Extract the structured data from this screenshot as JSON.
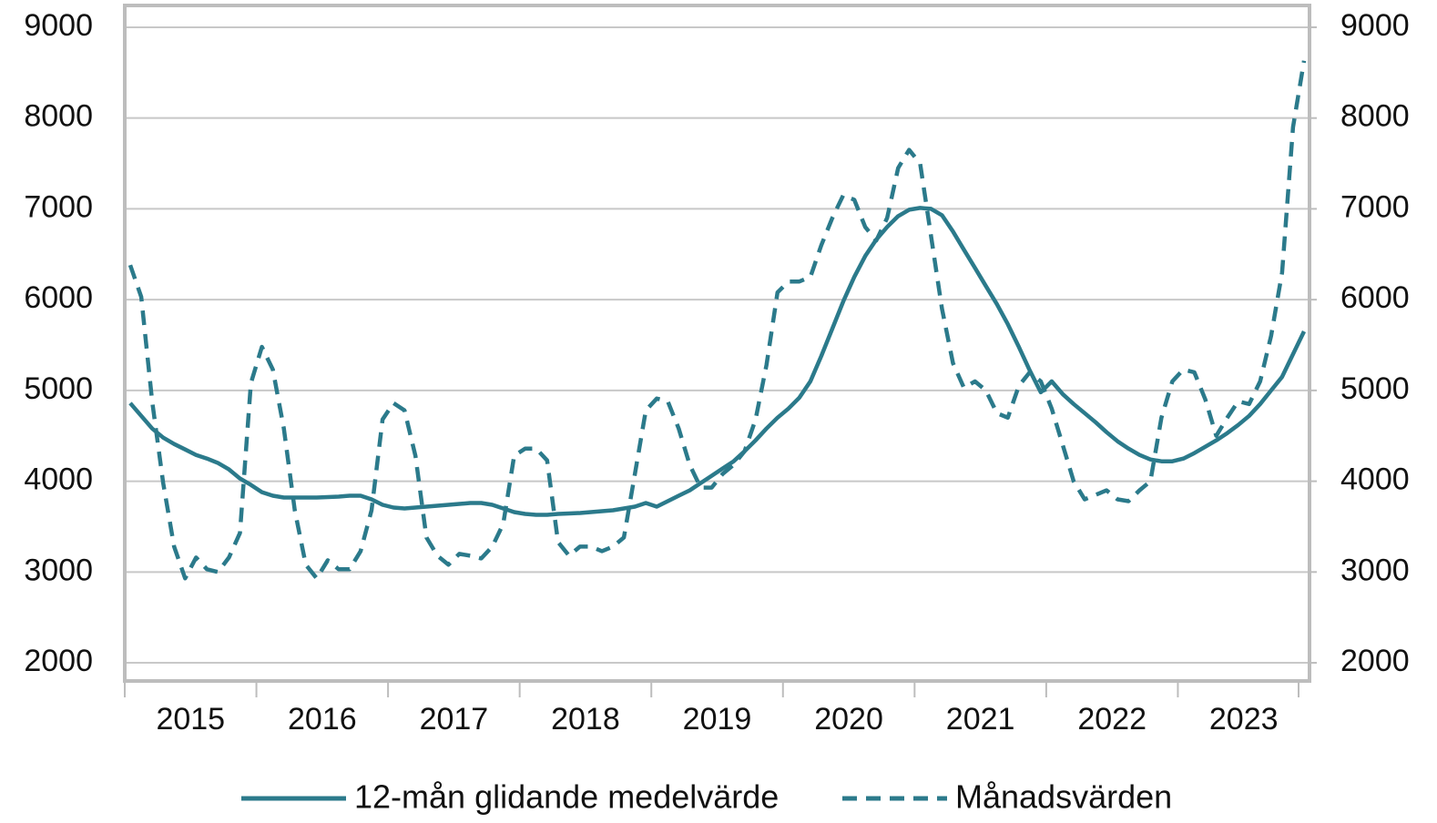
{
  "chart_data": {
    "type": "line",
    "categories": [
      "2015",
      null,
      null,
      null,
      null,
      null,
      null,
      null,
      null,
      null,
      null,
      null,
      "2016",
      null,
      null,
      null,
      null,
      null,
      null,
      null,
      null,
      null,
      null,
      null,
      "2017",
      null,
      null,
      null,
      null,
      null,
      null,
      null,
      null,
      null,
      null,
      null,
      "2018",
      null,
      null,
      null,
      null,
      null,
      null,
      null,
      null,
      null,
      null,
      null,
      "2019",
      null,
      null,
      null,
      null,
      null,
      null,
      null,
      null,
      null,
      null,
      null,
      "2020",
      null,
      null,
      null,
      null,
      null,
      null,
      null,
      null,
      null,
      null,
      null,
      "2021",
      null,
      null,
      null,
      null,
      null,
      null,
      null,
      null,
      null,
      null,
      null,
      "2022",
      null,
      null,
      null,
      null,
      null,
      null,
      null,
      null,
      null,
      null,
      null,
      "2023",
      null,
      null,
      null,
      null,
      null,
      null,
      null,
      null,
      null,
      null,
      null
    ],
    "series": [
      {
        "name": "12-mån glidande medelvärde",
        "color": "#2b7a8b",
        "style": "solid",
        "values": [
          4860,
          4720,
          4580,
          4480,
          4410,
          4350,
          4290,
          4250,
          4200,
          4130,
          4030,
          3960,
          3880,
          3840,
          3820,
          3820,
          3820,
          3820,
          3825,
          3830,
          3840,
          3840,
          3800,
          3740,
          3710,
          3700,
          3710,
          3720,
          3730,
          3740,
          3750,
          3760,
          3760,
          3740,
          3700,
          3660,
          3640,
          3630,
          3630,
          3640,
          3645,
          3650,
          3660,
          3670,
          3680,
          3700,
          3720,
          3760,
          3720,
          3780,
          3840,
          3900,
          3980,
          4060,
          4140,
          4220,
          4330,
          4450,
          4580,
          4700,
          4800,
          4920,
          5100,
          5380,
          5680,
          5980,
          6250,
          6480,
          6660,
          6800,
          6920,
          6990,
          7010,
          7000,
          6930,
          6750,
          6550,
          6350,
          6150,
          5950,
          5730,
          5480,
          5220,
          4980,
          5100,
          4960,
          4850,
          4750,
          4650,
          4540,
          4440,
          4360,
          4290,
          4240,
          4220,
          4220,
          4250,
          4310,
          4380,
          4450,
          4530,
          4620,
          4720,
          4850,
          5000,
          5150,
          5400,
          5650
        ]
      },
      {
        "name": "Månadsvärden",
        "color": "#2b7a8b",
        "style": "dashed",
        "values": [
          6380,
          6030,
          4880,
          3980,
          3280,
          2930,
          3160,
          3030,
          3000,
          3160,
          3430,
          5080,
          5480,
          5230,
          4580,
          3680,
          3080,
          2930,
          3130,
          3030,
          3030,
          3230,
          3680,
          4680,
          4860,
          4780,
          4280,
          3380,
          3180,
          3080,
          3200,
          3180,
          3150,
          3280,
          3530,
          4280,
          4360,
          4360,
          4230,
          3330,
          3180,
          3280,
          3280,
          3230,
          3280,
          3380,
          4080,
          4780,
          4910,
          4880,
          4580,
          4180,
          3930,
          3930,
          4080,
          4180,
          4330,
          4680,
          5280,
          6080,
          6200,
          6200,
          6250,
          6600,
          6900,
          7150,
          7100,
          6800,
          6650,
          6900,
          7450,
          7650,
          7500,
          6700,
          5900,
          5300,
          5030,
          5100,
          5000,
          4750,
          4700,
          5050,
          5200,
          5100,
          4800,
          4400,
          4000,
          3800,
          3850,
          3900,
          3800,
          3780,
          3900,
          4000,
          4700,
          5100,
          5230,
          5200,
          4900,
          4500,
          4700,
          4880,
          4850,
          5100,
          5600,
          6300,
          7900,
          8630
        ]
      }
    ],
    "ylim": [
      1800,
      9220
    ],
    "yticks": [
      2000,
      3000,
      4000,
      5000,
      6000,
      7000,
      8000,
      9000
    ],
    "y2lim": [
      1800,
      9220
    ],
    "y2ticks": [
      2000,
      3000,
      4000,
      5000,
      6000,
      7000,
      8000,
      9000
    ],
    "grid": true,
    "legend": "bottom"
  }
}
